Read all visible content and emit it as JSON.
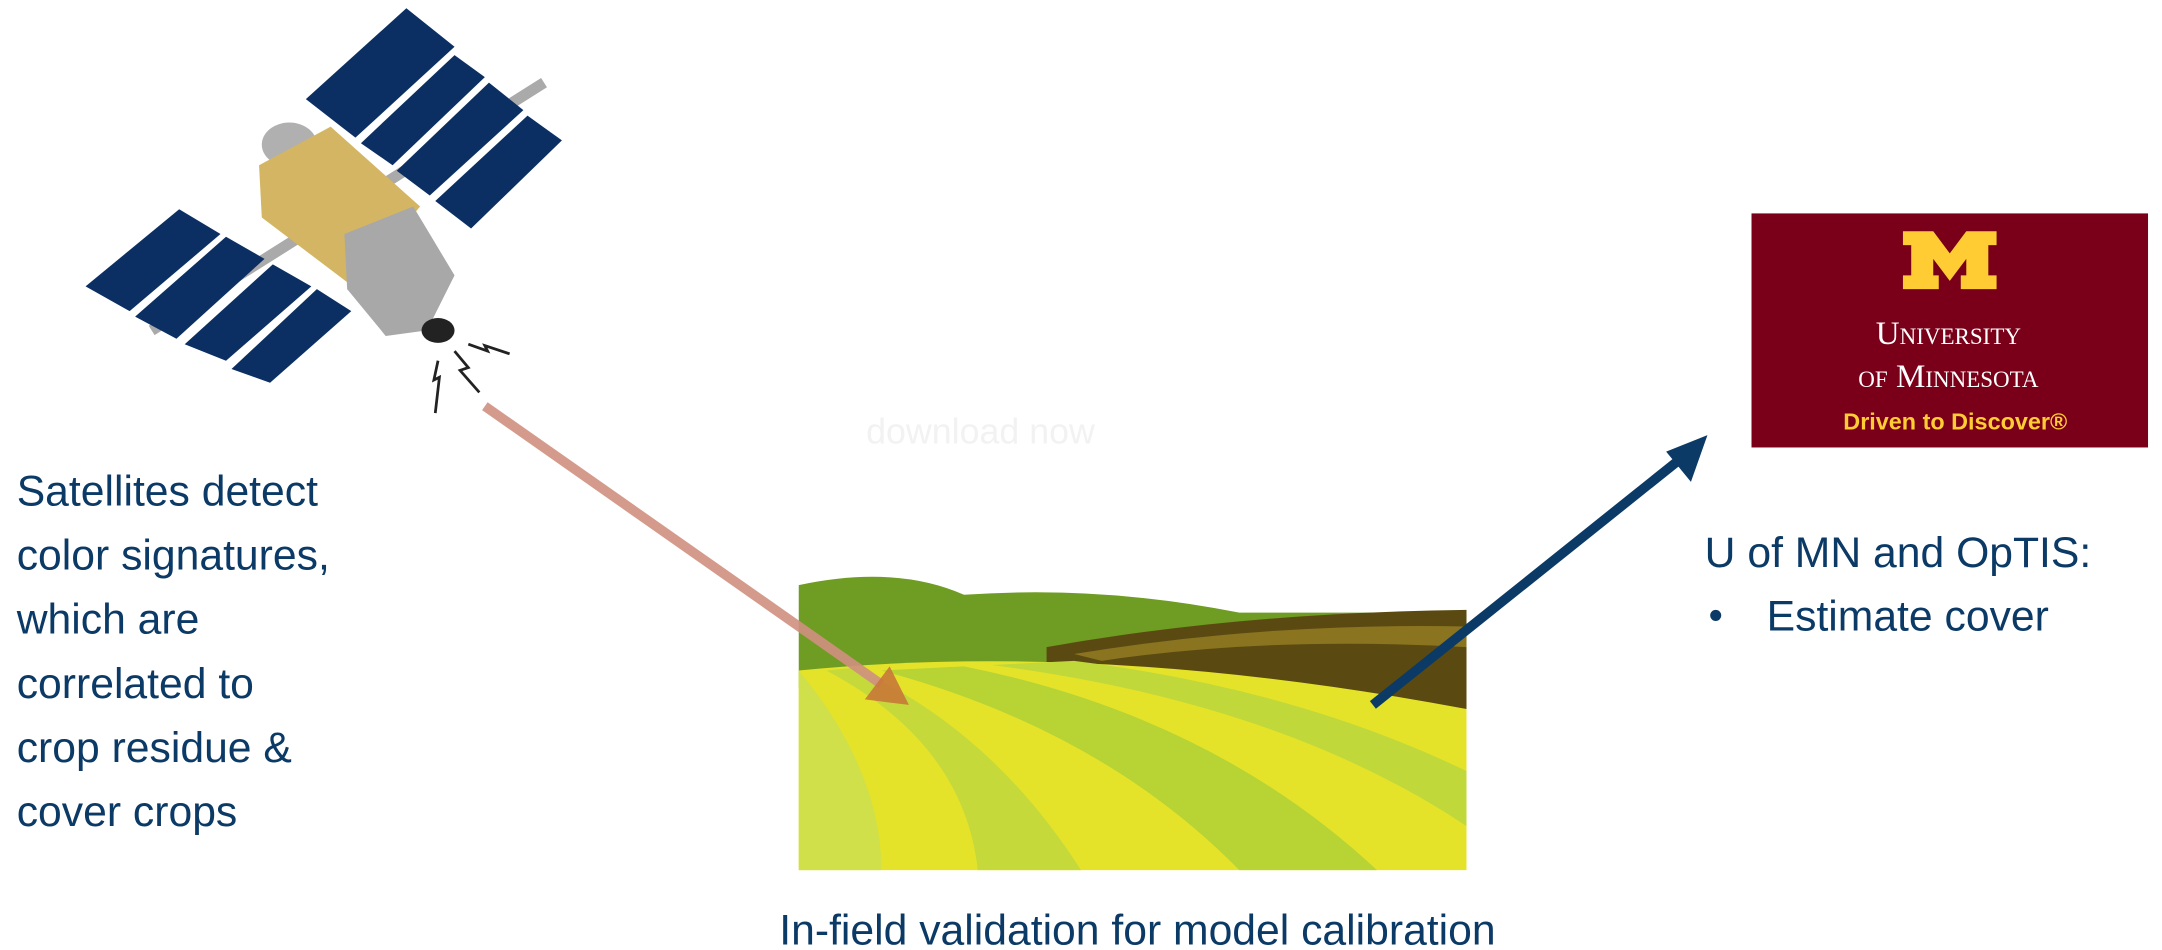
{
  "left_text": {
    "lines": [
      "Satellites detect",
      "color signatures,",
      "which are",
      "correlated to",
      "crop residue &",
      "cover crops"
    ]
  },
  "watermark": "download now",
  "caption": "In-field validation for model calibration",
  "right_text": {
    "heading": "U of MN and OpTIS:",
    "bullets": [
      "Estimate cover"
    ]
  },
  "logo": {
    "line1": "University",
    "line2": "of Minnesota",
    "tagline": "Driven to Discover®"
  }
}
